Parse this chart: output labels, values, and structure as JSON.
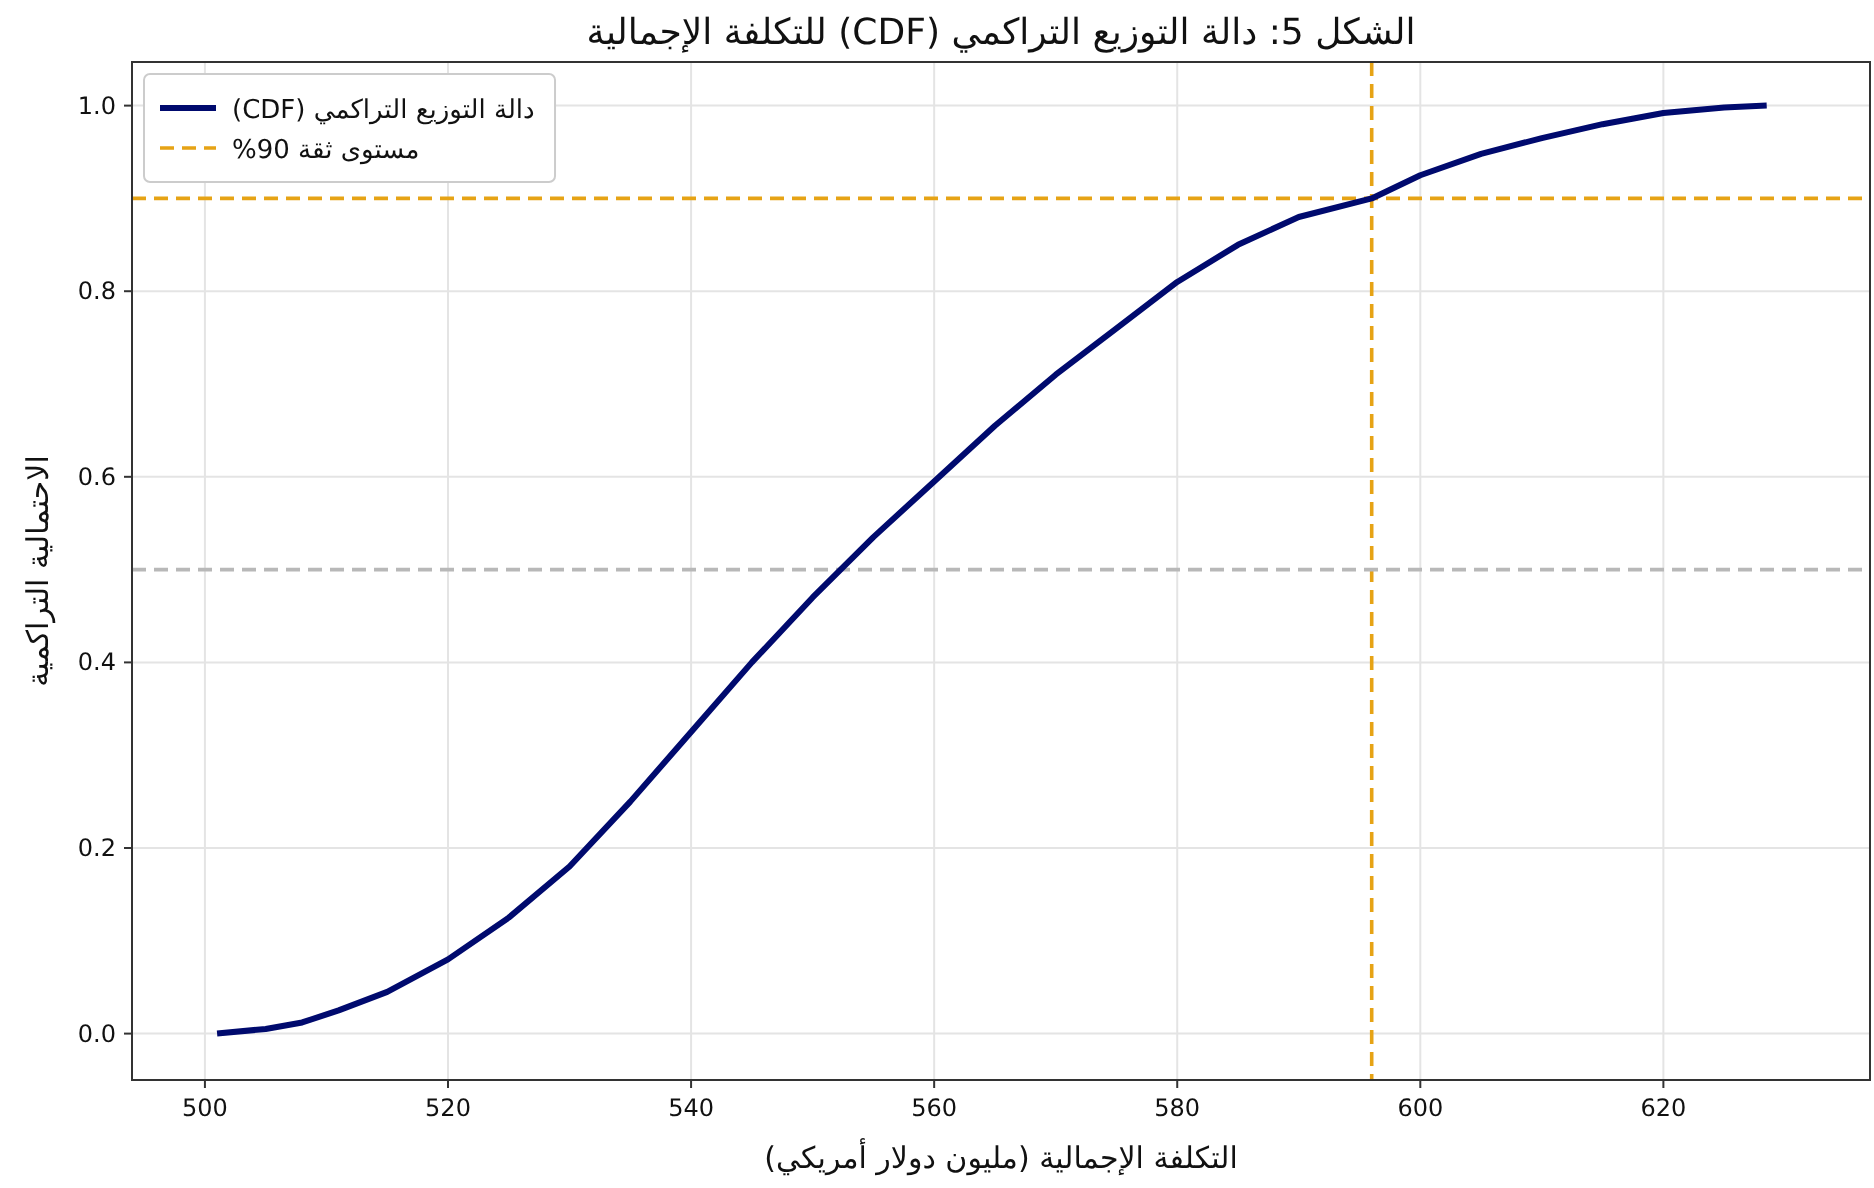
{
  "chart_data": {
    "type": "line",
    "title": "الشكل 5: دالة التوزيع التراكمي (CDF) للتكلفة الإجمالية",
    "xlabel": "التكلفة الإجمالية (مليون دولار أمريكي)",
    "ylabel": "الاحتمالية التراكمية",
    "x": [
      501,
      505,
      508,
      511,
      515,
      520,
      525,
      530,
      535,
      540,
      545,
      550,
      555,
      560,
      565,
      570,
      575,
      580,
      585,
      590,
      596,
      600,
      605,
      610,
      615,
      620,
      625,
      628.5
    ],
    "series": [
      {
        "name": "دالة التوزيع التراكمي (CDF)",
        "color": "#000a6e",
        "values": [
          0.0,
          0.005,
          0.012,
          0.025,
          0.045,
          0.08,
          0.125,
          0.18,
          0.25,
          0.325,
          0.4,
          0.47,
          0.535,
          0.595,
          0.655,
          0.71,
          0.76,
          0.81,
          0.85,
          0.88,
          0.9,
          0.925,
          0.948,
          0.965,
          0.98,
          0.992,
          0.998,
          1.0
        ]
      }
    ],
    "xlim": [
      494,
      637
    ],
    "ylim": [
      -0.05,
      1.047
    ],
    "xticks": [
      500,
      520,
      540,
      560,
      580,
      600,
      620
    ],
    "yticks": [
      {
        "value": 0,
        "label": "0.0"
      },
      {
        "value": 0.2,
        "label": "0.2"
      },
      {
        "value": 0.4,
        "label": "0.4"
      },
      {
        "value": 0.6,
        "label": "0.6"
      },
      {
        "value": 0.8,
        "label": "0.8"
      },
      {
        "value": 1,
        "label": "1.0"
      }
    ],
    "ref_lines": [
      {
        "axis": "y",
        "value": 0.9,
        "label": "مستوى ثقة 90%",
        "color": "#e6a315",
        "line_style": "dashed"
      },
      {
        "axis": "x",
        "value": 596,
        "color": "#e6a315",
        "line_style": "dashed"
      },
      {
        "axis": "y",
        "value": 0.5,
        "color": "#b8b8b8",
        "line_style": "dashed"
      }
    ],
    "grid": true,
    "legend": "top left",
    "line_style": "solid",
    "marker": "none"
  }
}
